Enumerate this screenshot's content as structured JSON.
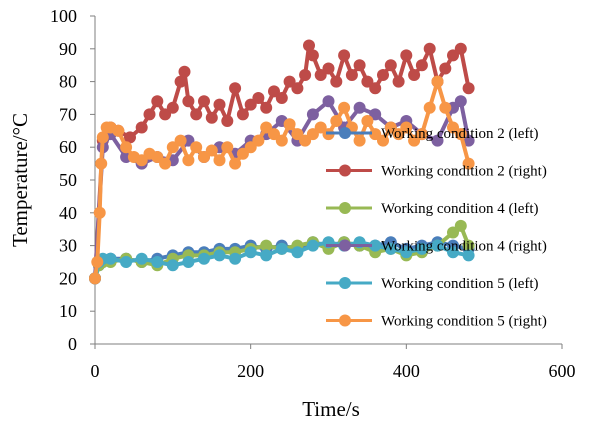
{
  "chart_data": {
    "type": "line",
    "title": "",
    "xlabel": "Time/s",
    "ylabel": "Temperature/°C",
    "xlim": [
      0,
      600
    ],
    "ylim": [
      0,
      100
    ],
    "xticks": [
      "0",
      "200",
      "400",
      "600"
    ],
    "yticks": [
      "0",
      "10",
      "20",
      "30",
      "40",
      "50",
      "60",
      "70",
      "80",
      "90",
      "100"
    ],
    "grid": false,
    "legend_position": "right",
    "series": [
      {
        "name": "Working condition 2 (left)",
        "color": "#4a7ebb",
        "x": [
          0,
          5,
          10,
          20,
          40,
          60,
          80,
          100,
          120,
          140,
          160,
          180,
          200,
          220,
          240,
          260,
          280,
          300,
          320,
          340,
          360,
          380,
          400,
          420,
          440,
          460,
          480
        ],
        "y": [
          20,
          24,
          25,
          26,
          26,
          25,
          26,
          27,
          28,
          28,
          29,
          29,
          30,
          29,
          30,
          29,
          31,
          30,
          31,
          30,
          30,
          31,
          29,
          30,
          31,
          30,
          29
        ]
      },
      {
        "name": "Working condition 2 (right)",
        "color": "#be4b48",
        "x": [
          0,
          10,
          20,
          30,
          45,
          60,
          70,
          80,
          90,
          100,
          110,
          115,
          120,
          130,
          140,
          150,
          160,
          170,
          180,
          190,
          200,
          210,
          220,
          230,
          240,
          250,
          260,
          270,
          275,
          280,
          290,
          300,
          310,
          320,
          330,
          340,
          350,
          360,
          370,
          380,
          390,
          400,
          410,
          420,
          430,
          440,
          450,
          460,
          470,
          480
        ],
        "y": [
          20,
          62,
          66,
          65,
          63,
          66,
          70,
          74,
          70,
          72,
          80,
          83,
          74,
          70,
          74,
          69,
          73,
          68,
          78,
          70,
          73,
          75,
          72,
          77,
          75,
          80,
          78,
          82,
          91,
          88,
          82,
          84,
          80,
          88,
          82,
          85,
          80,
          78,
          82,
          85,
          80,
          88,
          82,
          85,
          90,
          80,
          84,
          88,
          90,
          78
        ]
      },
      {
        "name": "Working condition 4 (left)",
        "color": "#98b954",
        "x": [
          0,
          5,
          10,
          20,
          40,
          60,
          80,
          100,
          120,
          140,
          160,
          180,
          200,
          220,
          240,
          260,
          280,
          300,
          320,
          340,
          360,
          380,
          400,
          420,
          440,
          460,
          470,
          480
        ],
        "y": [
          20,
          24,
          25,
          25,
          26,
          25,
          24,
          26,
          27,
          27,
          28,
          28,
          29,
          30,
          29,
          30,
          31,
          29,
          31,
          30,
          28,
          29,
          27,
          28,
          30,
          34,
          36,
          30
        ]
      },
      {
        "name": "Working condition 4 (right)",
        "color": "#7d60a0",
        "x": [
          0,
          10,
          20,
          40,
          60,
          80,
          100,
          120,
          140,
          160,
          180,
          200,
          220,
          240,
          260,
          280,
          300,
          320,
          340,
          360,
          380,
          400,
          420,
          440,
          460,
          470,
          480
        ],
        "y": [
          20,
          60,
          64,
          57,
          55,
          57,
          56,
          62,
          57,
          60,
          58,
          62,
          64,
          68,
          62,
          70,
          74,
          66,
          72,
          70,
          66,
          68,
          64,
          62,
          72,
          74,
          62
        ]
      },
      {
        "name": "Working condition 5 (left)",
        "color": "#46aac5",
        "x": [
          0,
          5,
          10,
          20,
          40,
          60,
          80,
          100,
          120,
          140,
          160,
          180,
          200,
          220,
          240,
          260,
          280,
          300,
          320,
          340,
          360,
          380,
          400,
          420,
          440,
          460,
          480
        ],
        "y": [
          20,
          25,
          26,
          26,
          25,
          26,
          25,
          24,
          25,
          26,
          27,
          26,
          28,
          27,
          29,
          28,
          30,
          31,
          30,
          31,
          30,
          29,
          28,
          29,
          30,
          28,
          27
        ]
      },
      {
        "name": "Working condition 5 (right)",
        "color": "#f79646",
        "x": [
          0,
          3,
          6,
          8,
          10,
          15,
          20,
          30,
          40,
          50,
          60,
          70,
          80,
          90,
          100,
          110,
          120,
          130,
          140,
          150,
          160,
          170,
          180,
          190,
          200,
          210,
          220,
          230,
          240,
          250,
          260,
          270,
          280,
          290,
          300,
          310,
          320,
          330,
          340,
          350,
          360,
          370,
          380,
          390,
          400,
          410,
          420,
          430,
          440,
          450,
          460,
          470,
          480
        ],
        "y": [
          20,
          25,
          40,
          55,
          63,
          66,
          66,
          65,
          60,
          57,
          56,
          58,
          57,
          55,
          60,
          62,
          56,
          60,
          57,
          59,
          56,
          60,
          55,
          58,
          60,
          62,
          66,
          64,
          62,
          67,
          64,
          62,
          64,
          66,
          64,
          68,
          72,
          66,
          62,
          68,
          64,
          62,
          66,
          64,
          66,
          62,
          64,
          72,
          80,
          72,
          66,
          64,
          55
        ]
      }
    ]
  }
}
